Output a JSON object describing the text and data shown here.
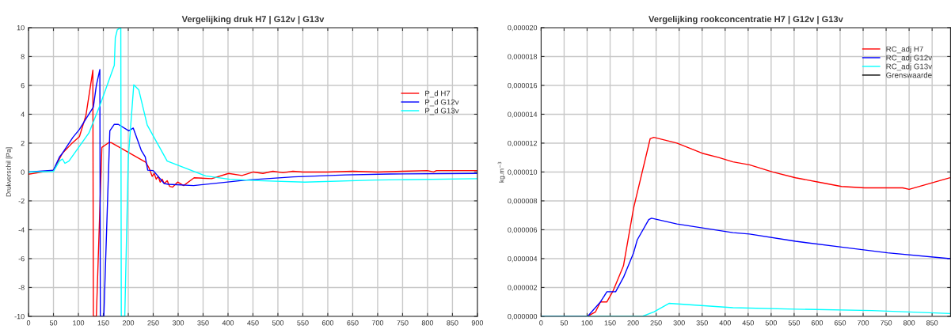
{
  "chart_data": [
    {
      "type": "line",
      "title": "Vergelijking druk H7 | G12v | G13v",
      "ylabel": "Drukverschil [Pa]",
      "xlim": [
        0,
        900
      ],
      "ylim": [
        -10,
        10
      ],
      "xticks": [
        0,
        50,
        100,
        150,
        200,
        250,
        300,
        350,
        400,
        450,
        500,
        550,
        600,
        650,
        700,
        750,
        800,
        850,
        900
      ],
      "yticks": [
        -10,
        -8,
        -6,
        -4,
        -2,
        0,
        2,
        4,
        6,
        8,
        10
      ],
      "grid": true,
      "legend": "right",
      "line_style": "solid",
      "series": [
        {
          "name": "P_d H7",
          "color": "#ff0000",
          "x": [
            0,
            50,
            68,
            86,
            102,
            115,
            129,
            130,
            136,
            147,
            161,
            166,
            235,
            242,
            248,
            252,
            256,
            260,
            264,
            268,
            272,
            278,
            283,
            289,
            299,
            311,
            332,
            367,
            401,
            428,
            451,
            470,
            490,
            510,
            530,
            550,
            600,
            650,
            700,
            750,
            800,
            812,
            818,
            900
          ],
          "values": [
            -0.15,
            0.13,
            1.3,
            1.95,
            2.45,
            3.9,
            7.05,
            -10,
            -10,
            1.7,
            2.04,
            2.03,
            0.67,
            0.25,
            -0.3,
            -0.1,
            -0.5,
            -0.3,
            -0.7,
            -0.5,
            -0.8,
            -0.6,
            -1.0,
            -1.05,
            -0.7,
            -0.94,
            -0.4,
            -0.46,
            -0.1,
            -0.24,
            0,
            -0.1,
            0.05,
            -0.05,
            0.05,
            0,
            0,
            0.05,
            0,
            0.05,
            0.1,
            0,
            0.1,
            0.1
          ]
        },
        {
          "name": "P_d G12v",
          "color": "#0000ff",
          "x": [
            0,
            50,
            62,
            68,
            89,
            102,
            115,
            130,
            136,
            143,
            144,
            151,
            163,
            172,
            180,
            201,
            210,
            226,
            234,
            239,
            250,
            272,
            280,
            331,
            437,
            531,
            636,
            724,
            900
          ],
          "values": [
            0,
            0.13,
            1.04,
            1.3,
            2.4,
            2.95,
            3.67,
            4.5,
            6.0,
            7.1,
            -10,
            -10,
            2.85,
            3.3,
            3.3,
            2.85,
            3.04,
            1.5,
            1.04,
            0.13,
            0.1,
            -0.8,
            -0.85,
            -0.94,
            -0.56,
            -0.34,
            -0.2,
            -0.14,
            -0.1
          ]
        },
        {
          "name": "P_d G13v",
          "color": "#00ffff",
          "x": [
            0,
            50,
            62,
            68,
            73,
            81,
            121,
            143,
            172,
            174,
            178,
            185,
            186,
            193,
            200,
            211,
            221,
            238,
            278,
            355,
            403,
            460,
            554,
            695,
            900
          ],
          "values": [
            0,
            0.04,
            0.76,
            0.9,
            0.6,
            0.76,
            2.7,
            4.6,
            7.4,
            9.3,
            9.85,
            10,
            -10,
            -10,
            0.95,
            6.04,
            5.7,
            3.25,
            0.76,
            -0.27,
            -0.5,
            -0.6,
            -0.7,
            -0.56,
            -0.46
          ]
        }
      ]
    },
    {
      "type": "line",
      "title": "Vergelijking rookconcentratie H7 | G12v | G13v",
      "ylabel": "kg.m$^{−3}$",
      "xlim": [
        0,
        890
      ],
      "ylim": [
        0,
        2e-05
      ],
      "xticks": [
        0,
        50,
        100,
        150,
        200,
        250,
        300,
        350,
        400,
        450,
        500,
        550,
        600,
        650,
        700,
        750,
        800,
        850
      ],
      "yticks": [
        {
          "value": 0,
          "label": "0,000000"
        },
        {
          "value": 2e-06,
          "label": "0,000002"
        },
        {
          "value": 4e-06,
          "label": "0,000004"
        },
        {
          "value": 6e-06,
          "label": "0,000006"
        },
        {
          "value": 8e-06,
          "label": "0,000008"
        },
        {
          "value": 1e-05,
          "label": "0,000010"
        },
        {
          "value": 1.2e-05,
          "label": "0,000012"
        },
        {
          "value": 1.4e-05,
          "label": "0,000014"
        },
        {
          "value": 1.6e-05,
          "label": "0,000016"
        },
        {
          "value": 1.8e-05,
          "label": "0,000018"
        },
        {
          "value": 2e-05,
          "label": "0,000020"
        }
      ],
      "grid": true,
      "legend": "top right",
      "line_style": "solid",
      "series": [
        {
          "name": "RC_adj H7",
          "color": "#ff0000",
          "x": [
            0,
            101,
            118,
            129,
            143,
            157,
            179,
            201,
            237,
            245,
            295,
            350,
            386,
            417,
            453,
            503,
            553,
            603,
            653,
            703,
            747,
            786,
            800,
            888
          ],
          "values": [
            0,
            0,
            3e-07,
            1e-06,
            1e-06,
            1.8e-06,
            3.5e-06,
            7.5e-06,
            1.23e-05,
            1.24e-05,
            1.2e-05,
            1.13e-05,
            1.1e-05,
            1.07e-05,
            1.05e-05,
            1e-05,
            9.6e-06,
            9.3e-06,
            9e-06,
            8.9e-06,
            8.9e-06,
            8.9e-06,
            8.8e-06,
            9.6e-06
          ]
        },
        {
          "name": "RC_adj G12v",
          "color": "#0000ff",
          "x": [
            0,
            101,
            129,
            143,
            162,
            179,
            201,
            209,
            234,
            240,
            295,
            417,
            453,
            553,
            653,
            753,
            888
          ],
          "values": [
            0,
            0,
            1e-06,
            1.7e-06,
            1.7e-06,
            2.7e-06,
            4.4e-06,
            5.3e-06,
            6.7e-06,
            6.8e-06,
            6.4e-06,
            5.8e-06,
            5.7e-06,
            5.2e-06,
            4.8e-06,
            4.4e-06,
            4e-06
          ]
        },
        {
          "name": "RC_adj G13v",
          "color": "#00ffff",
          "x": [
            0,
            220,
            245,
            278,
            417,
            553,
            719,
            888
          ],
          "values": [
            0,
            0,
            3e-07,
            9e-07,
            6e-07,
            5e-07,
            4e-07,
            2e-07
          ]
        },
        {
          "name": "Grenswaarde",
          "color": "#000000"
        }
      ]
    }
  ]
}
